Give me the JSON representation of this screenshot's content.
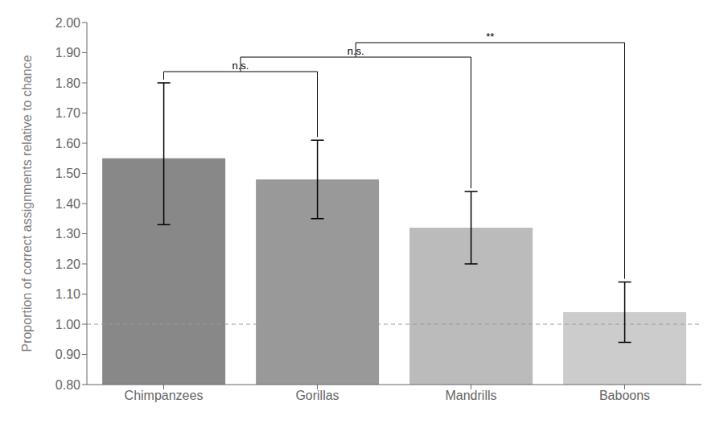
{
  "chart_data": {
    "type": "bar",
    "categories": [
      "Chimpanzees",
      "Gorillas",
      "Mandrills",
      "Baboons"
    ],
    "values": [
      1.55,
      1.48,
      1.32,
      1.04
    ],
    "errors_up": [
      0.25,
      0.13,
      0.12,
      0.1
    ],
    "errors_down": [
      0.22,
      0.13,
      0.12,
      0.1
    ],
    "colors": [
      "#888888",
      "#999999",
      "#bbbbbb",
      "#cccccc"
    ],
    "ylabel": "Proportion of correct assignments relative to chance",
    "ylim": [
      0.8,
      2.0
    ],
    "yticks": [
      {
        "value": 0.8,
        "label": "0.80"
      },
      {
        "value": 0.9,
        "label": "0.90"
      },
      {
        "value": 1.0,
        "label": "1.00"
      },
      {
        "value": 1.1,
        "label": "1.10"
      },
      {
        "value": 1.2,
        "label": "1.20"
      },
      {
        "value": 1.3,
        "label": "1.30"
      },
      {
        "value": 1.4,
        "label": "1.40"
      },
      {
        "value": 1.5,
        "label": "1.50"
      },
      {
        "value": 1.6,
        "label": "1.60"
      },
      {
        "value": 1.7,
        "label": "1.70"
      },
      {
        "value": 1.8,
        "label": "1.80"
      },
      {
        "value": 1.9,
        "label": "1.90"
      },
      {
        "value": 2.0,
        "label": "2.00"
      }
    ],
    "reference_line": 1.0,
    "brackets": [
      {
        "label": "n.s.",
        "groups": [
          "Chimpanzees",
          "Gorillas"
        ]
      },
      {
        "label": "n.s.",
        "groups": [
          "Chimpanzees",
          "Gorillas",
          "Mandrills"
        ]
      },
      {
        "label": "**",
        "groups": [
          "Chimpanzees",
          "Gorillas",
          "Mandrills",
          "Baboons"
        ]
      }
    ]
  }
}
